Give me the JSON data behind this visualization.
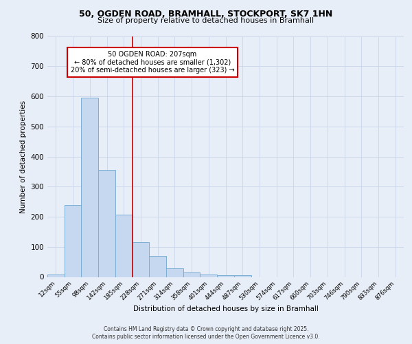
{
  "title1": "50, OGDEN ROAD, BRAMHALL, STOCKPORT, SK7 1HN",
  "title2": "Size of property relative to detached houses in Bramhall",
  "xlabel": "Distribution of detached houses by size in Bramhall",
  "ylabel": "Number of detached properties",
  "bin_labels": [
    "12sqm",
    "55sqm",
    "98sqm",
    "142sqm",
    "185sqm",
    "228sqm",
    "271sqm",
    "314sqm",
    "358sqm",
    "401sqm",
    "444sqm",
    "487sqm",
    "530sqm",
    "574sqm",
    "617sqm",
    "660sqm",
    "703sqm",
    "746sqm",
    "790sqm",
    "833sqm",
    "876sqm"
  ],
  "bar_values": [
    8,
    240,
    595,
    355,
    207,
    115,
    70,
    28,
    15,
    8,
    5,
    6,
    0,
    0,
    0,
    0,
    0,
    0,
    0,
    0,
    0
  ],
  "bar_color": "#c5d8f0",
  "bar_edgecolor": "#7bafd4",
  "vline_x": 4.5,
  "vline_color": "#cc0000",
  "annotation_text": "50 OGDEN ROAD: 207sqm\n← 80% of detached houses are smaller (1,302)\n20% of semi-detached houses are larger (323) →",
  "annotation_box_color": "#cc0000",
  "ylim": [
    0,
    800
  ],
  "yticks": [
    0,
    100,
    200,
    300,
    400,
    500,
    600,
    700,
    800
  ],
  "bg_color": "#e8eef7",
  "grid_color": "#c8d4e8",
  "footer1": "Contains HM Land Registry data © Crown copyright and database right 2025.",
  "footer2": "Contains public sector information licensed under the Open Government Licence v3.0."
}
